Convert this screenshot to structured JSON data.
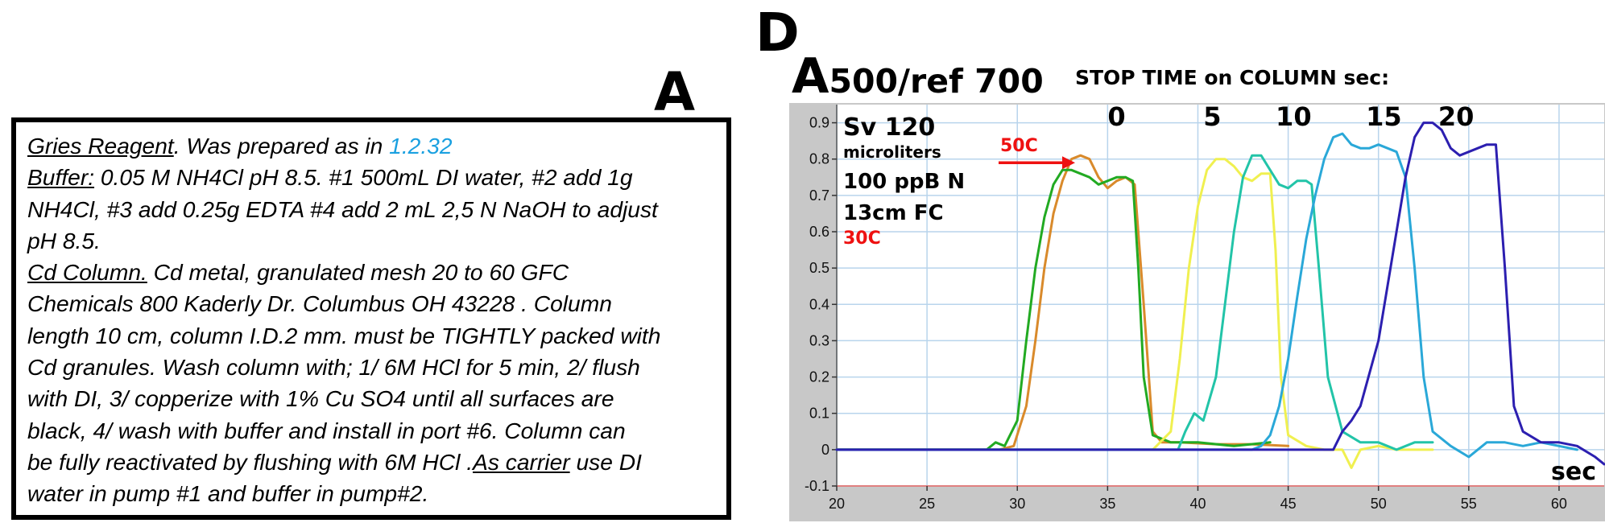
{
  "panels": {
    "a_letter": "A",
    "d_letter": "D"
  },
  "notes": {
    "line1_label": "Gries Reagent",
    "line1_text": ". Was prepared as in ",
    "line1_ref": "1.2.32",
    "line2_label": "Buffer:",
    "line2_text": " 0.05  M NH4Cl pH 8.5.  #1 500mL DI water, #2 add 1g",
    "line3": "NH4Cl, #3 add 0.25g EDTA #4 add 2 mL 2,5 N NaOH to adjust",
    "line4": "pH 8.5.",
    "line5_label": "Cd Column.",
    "line5_text": "  Cd metal, granulated mesh 20 to 60  GFC",
    "line6": "Chemicals 800 Kaderly Dr. Columbus  OH 43228 . Column",
    "line7": "length 10 cm, column I.D.2 mm. must be TIGHTLY packed with",
    "line8": "Cd granules.  Wash column with; 1/  6M HCl for 5 min, 2/ flush",
    "line9": "with DI, 3/ copperize with 1% Cu SO4 until  all surfaces are",
    "line10": "black, 4/ wash with buffer and install in port #6. Column can",
    "line11_text": "be fully reactivated by flushing with 6M HCl .",
    "line11_label": "As carrier",
    "line11_tail": " use DI",
    "line12": "water in pump #1 and buffer in pump#2."
  },
  "chart_title": {
    "big": "A",
    "rest": "500/ref 700"
  },
  "stop_time_title": "STOP TIME on COLUMN sec:",
  "colors": {
    "plot_bg": "#ffffff",
    "frame_bg": "#c8c8c8",
    "grid": "#b8d4ec",
    "zero_line": "#e08080",
    "arrow": "#ee1111",
    "red_label": "#ee1111"
  },
  "chart_data": {
    "type": "line",
    "xlim": [
      20,
      62.5
    ],
    "ylim": [
      -0.1,
      0.95
    ],
    "x_ticks": [
      20,
      25,
      30,
      35,
      40,
      45,
      50,
      55,
      60
    ],
    "y_ticks": [
      -0.1,
      0,
      0.1,
      0.2,
      0.3,
      0.4,
      0.5,
      0.6,
      0.7,
      0.8,
      0.9
    ],
    "x_tick_labels": [
      "20",
      "25",
      "30",
      "35",
      "40",
      "45",
      "50",
      "55",
      "60"
    ],
    "y_tick_labels": [
      "-0.1",
      "0",
      "0.1",
      "0.2",
      "0.3",
      "0.4",
      "0.5",
      "0.6",
      "0.7",
      "0.8",
      "0.9"
    ],
    "xlabel": "sec",
    "ylabel": "",
    "grid": true,
    "info_lines": [
      "Sv 120",
      "microliters",
      "100 ppB N",
      "13cm FC"
    ],
    "annotations": [
      {
        "text": "30C",
        "color": "red"
      },
      {
        "text": "50C",
        "color": "red",
        "arrow_to": [
          33.2,
          0.79
        ]
      }
    ],
    "stop_time_labels": [
      {
        "text": "0",
        "x": 35.5
      },
      {
        "text": "5",
        "x": 40.8
      },
      {
        "text": "10",
        "x": 45.3
      },
      {
        "text": "15",
        "x": 50.3
      },
      {
        "text": "20",
        "x": 54.3
      }
    ],
    "series": [
      {
        "color": "#d98a2b",
        "x": [
          20,
          29,
          29.8,
          30.5,
          31,
          31.5,
          32,
          32.5,
          33,
          33.5,
          34,
          34.5,
          35,
          35.5,
          36,
          36.5,
          37,
          37.5,
          38,
          39,
          41,
          43,
          45
        ],
        "y": [
          0,
          0,
          0.01,
          0.12,
          0.3,
          0.5,
          0.65,
          0.74,
          0.8,
          0.81,
          0.8,
          0.75,
          0.72,
          0.74,
          0.75,
          0.73,
          0.4,
          0.05,
          0.02,
          0.02,
          0.015,
          0.015,
          0.01
        ]
      },
      {
        "color": "#22aa22",
        "x": [
          20,
          28.3,
          28.8,
          29.3,
          30,
          30.5,
          31,
          31.5,
          32,
          32.5,
          33,
          33.5,
          34,
          34.5,
          35,
          35.5,
          36,
          36.4,
          36.7,
          37,
          37.5,
          38.5,
          40,
          42,
          44
        ],
        "y": [
          0,
          0,
          0.02,
          0.01,
          0.08,
          0.3,
          0.5,
          0.64,
          0.73,
          0.77,
          0.77,
          0.76,
          0.75,
          0.73,
          0.74,
          0.75,
          0.75,
          0.74,
          0.5,
          0.2,
          0.04,
          0.02,
          0.02,
          0.01,
          0.02
        ]
      },
      {
        "color": "#f0f050",
        "x": [
          20,
          37.5,
          38.5,
          39,
          39.5,
          40,
          40.5,
          41,
          41.5,
          42,
          42.5,
          43,
          43.5,
          44,
          44.3,
          44.6,
          45,
          46,
          47,
          48,
          48.5,
          49,
          50,
          51,
          52,
          53
        ],
        "y": [
          0,
          0,
          0.05,
          0.25,
          0.5,
          0.67,
          0.77,
          0.8,
          0.8,
          0.78,
          0.75,
          0.74,
          0.76,
          0.76,
          0.55,
          0.2,
          0.04,
          0.01,
          0.0,
          0.0,
          -0.05,
          0.0,
          0.01,
          0.0,
          0.0,
          0.0
        ]
      },
      {
        "color": "#22c4a8",
        "x": [
          20,
          38.9,
          39.3,
          39.8,
          40.3,
          41,
          41.5,
          42,
          42.5,
          43,
          43.5,
          44,
          44.5,
          45,
          45.5,
          46,
          46.3,
          46.7,
          47.2,
          48,
          49,
          50,
          51,
          52,
          53
        ],
        "y": [
          0,
          0,
          0.05,
          0.1,
          0.08,
          0.2,
          0.4,
          0.6,
          0.75,
          0.81,
          0.81,
          0.77,
          0.73,
          0.72,
          0.74,
          0.74,
          0.73,
          0.5,
          0.2,
          0.05,
          0.02,
          0.02,
          0.0,
          0.02,
          0.02
        ]
      },
      {
        "color": "#2aa8d8",
        "x": [
          20,
          42.5,
          43,
          43.5,
          44,
          44.5,
          45,
          45.5,
          46,
          46.5,
          47,
          47.5,
          48,
          48.5,
          49,
          49.5,
          50,
          50.5,
          51,
          51.5,
          52,
          52.5,
          53,
          54,
          55,
          56,
          57,
          58,
          59,
          60,
          61
        ],
        "y": [
          0,
          0,
          0.0,
          0.01,
          0.04,
          0.12,
          0.25,
          0.42,
          0.58,
          0.7,
          0.8,
          0.86,
          0.87,
          0.84,
          0.83,
          0.83,
          0.84,
          0.83,
          0.82,
          0.75,
          0.5,
          0.2,
          0.05,
          0.01,
          -0.02,
          0.02,
          0.02,
          0.01,
          0.02,
          0.01,
          0.0
        ]
      },
      {
        "color": "#2c1fb0",
        "x": [
          20,
          47.5,
          48,
          48.5,
          49,
          50,
          50.5,
          51,
          51.5,
          52,
          52.5,
          53,
          53.5,
          54,
          54.5,
          55,
          55.5,
          56,
          56.5,
          57,
          57.5,
          58,
          59,
          60,
          61,
          62,
          62.5
        ],
        "y": [
          0,
          0,
          0.05,
          0.08,
          0.12,
          0.3,
          0.45,
          0.6,
          0.75,
          0.86,
          0.9,
          0.9,
          0.88,
          0.83,
          0.81,
          0.82,
          0.83,
          0.84,
          0.84,
          0.5,
          0.12,
          0.05,
          0.02,
          0.02,
          0.01,
          -0.02,
          -0.04
        ]
      }
    ]
  }
}
